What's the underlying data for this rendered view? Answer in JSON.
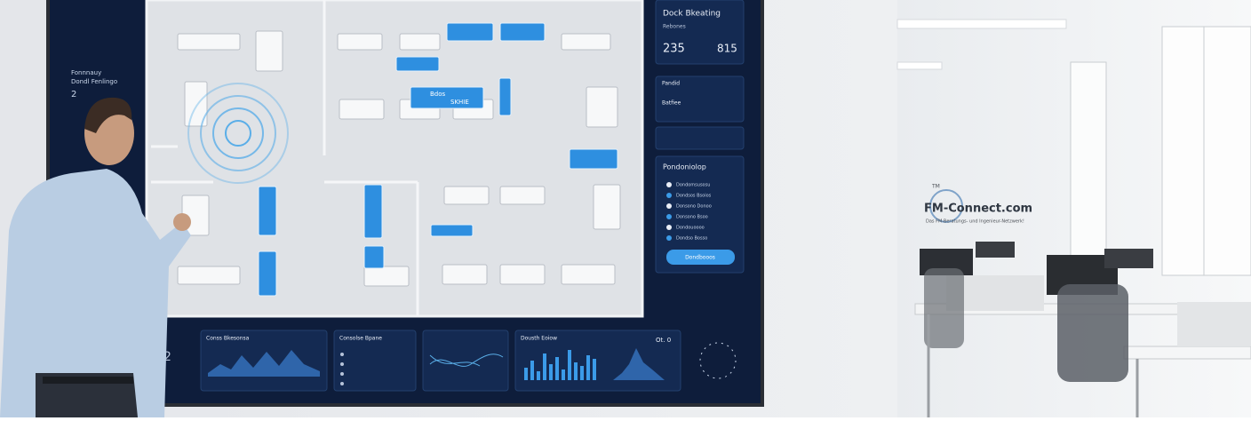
{
  "screen": {
    "left_panel": {
      "title": "Fonnnauy",
      "subtitle": "Dondl Fenlingo",
      "value": "2"
    },
    "sidebar": {
      "booking": {
        "title": "Dock Bkeating",
        "subtitle": "Rebones",
        "left_count": "235",
        "right_count": "815"
      },
      "status": {
        "title": "Pandid",
        "subtitle": "Batfiee"
      },
      "legend": {
        "title": "Pondoniolop",
        "items": [
          "Dondomsusosu",
          "Dondsos Bsoios",
          "Donsono Donoo",
          "Donsono Bsoo",
          "Dondouoooo",
          "Dondso Bosso"
        ],
        "button": "Dondbooos"
      }
    },
    "floor_labels": {
      "desk_a": "Bdos",
      "desk_b": "SKHIE"
    },
    "bottom": {
      "panel1": "Conss Bkesonsa",
      "panel2": "Consolse Bpane",
      "panel4": "Dousth Eoiow",
      "panel4_value": "Ot. 0",
      "stat": "2"
    }
  },
  "logo": {
    "mark": "TM",
    "name": "FM-Connect.com",
    "tagline": "Das FM-Beratungs- und Ingenieur-Netzwerk!"
  }
}
